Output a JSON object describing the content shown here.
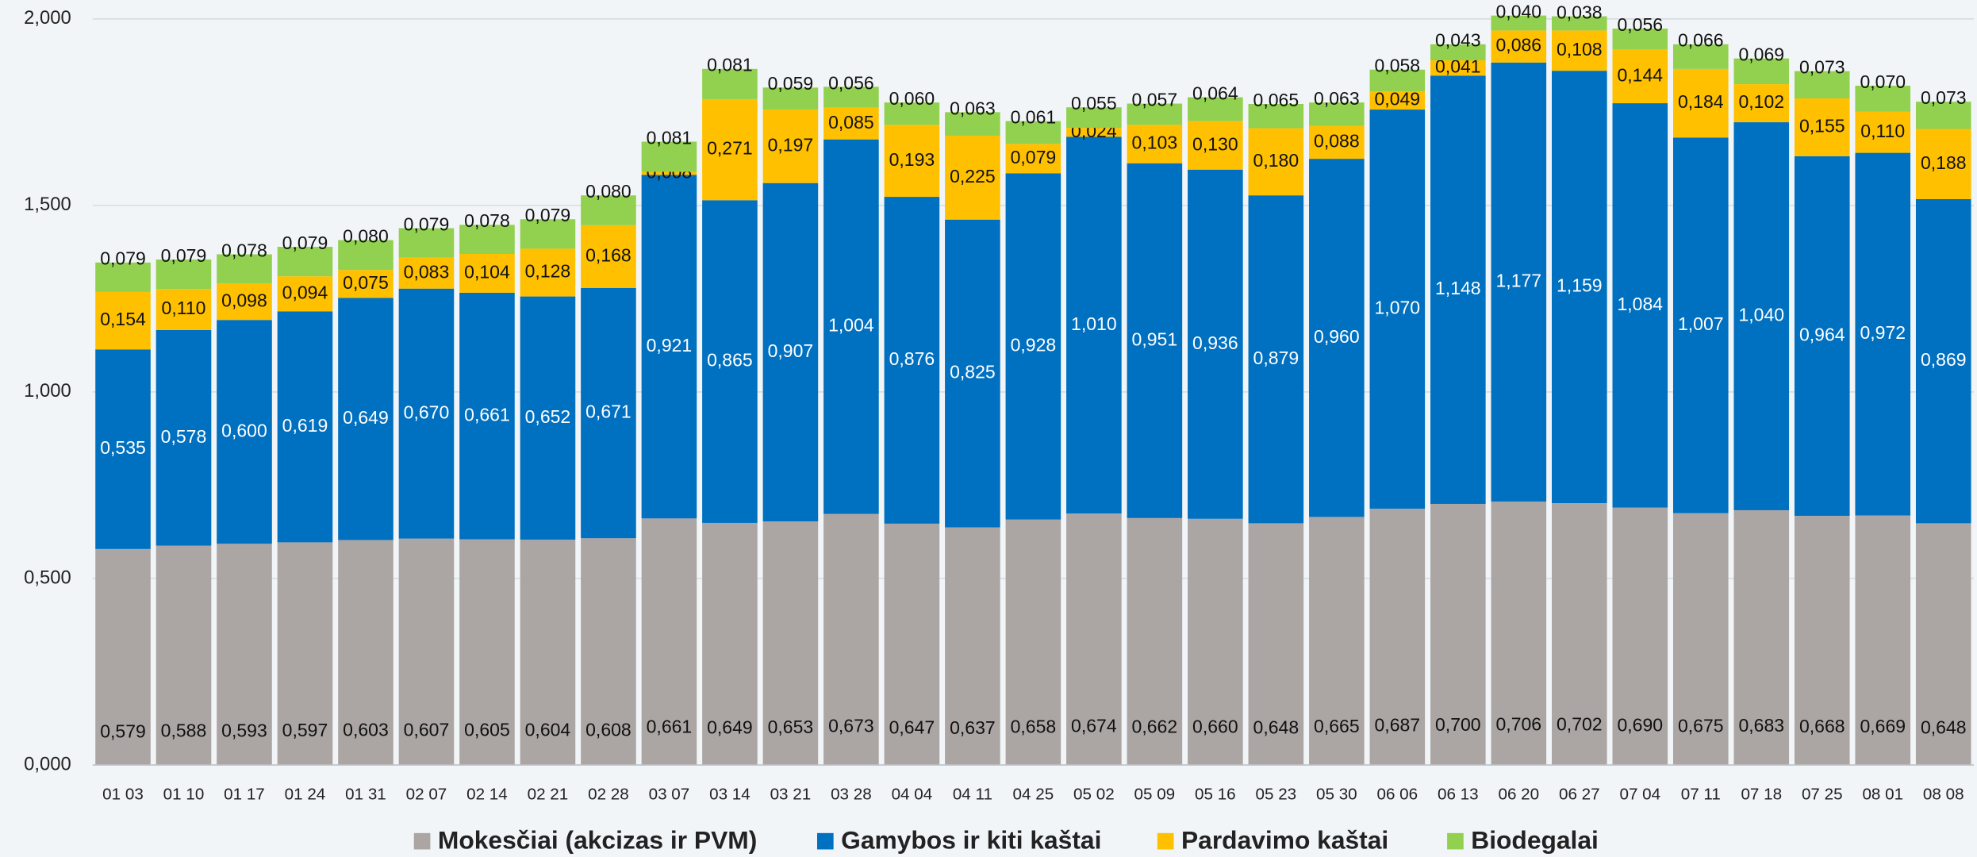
{
  "chart_data": {
    "type": "stacked_bar",
    "categories": [
      "01 03",
      "01 10",
      "01 17",
      "01 24",
      "01 31",
      "02 07",
      "02 14",
      "02 21",
      "02 28",
      "03 07",
      "03 14",
      "03 21",
      "03 28",
      "04 04",
      "04 11",
      "04 25",
      "05 02",
      "05 09",
      "05 16",
      "05 23",
      "05 30",
      "06 06",
      "06 13",
      "06 20",
      "06 27",
      "07 04",
      "07 11",
      "07 18",
      "07 25",
      "08 01",
      "08 08"
    ],
    "ylim": [
      0,
      2
    ],
    "yticks": [
      {
        "value": 0,
        "label": "0,000"
      },
      {
        "value": 0.5,
        "label": "0,500"
      },
      {
        "value": 1,
        "label": "1,000"
      },
      {
        "value": 1.5,
        "label": "1,500"
      },
      {
        "value": 2,
        "label": "2,000"
      }
    ],
    "grid": true,
    "legend": "bottom",
    "series": [
      {
        "name": "Mokesčiai (akcizas ir PVM)",
        "color": "#aba6a4",
        "label_color": "#111111",
        "values": [
          0.579,
          0.588,
          0.593,
          0.597,
          0.603,
          0.607,
          0.605,
          0.604,
          0.608,
          0.661,
          0.649,
          0.653,
          0.673,
          0.647,
          0.637,
          0.658,
          0.674,
          0.662,
          0.66,
          0.648,
          0.665,
          0.687,
          0.7,
          0.706,
          0.702,
          0.69,
          0.675,
          0.683,
          0.668,
          0.669,
          0.648
        ],
        "value_labels": [
          "0,579",
          "0,588",
          "0,593",
          "0,597",
          "0,603",
          "0,607",
          "0,605",
          "0,604",
          "0,608",
          "0,661",
          "0,649",
          "0,653",
          "0,673",
          "0,647",
          "0,637",
          "0,658",
          "0,674",
          "0,662",
          "0,660",
          "0,648",
          "0,665",
          "0,687",
          "0,700",
          "0,706",
          "0,702",
          "0,690",
          "0,675",
          "0,683",
          "0,668",
          "0,669",
          "0,648"
        ]
      },
      {
        "name": "Gamybos ir kiti kaštai",
        "color": "#0070c0",
        "label_color": "#ffffff",
        "values": [
          0.535,
          0.578,
          0.6,
          0.619,
          0.649,
          0.67,
          0.661,
          0.652,
          0.671,
          0.921,
          0.865,
          0.907,
          1.004,
          0.876,
          0.825,
          0.928,
          1.01,
          0.951,
          0.936,
          0.879,
          0.96,
          1.07,
          1.148,
          1.177,
          1.159,
          1.084,
          1.007,
          1.04,
          0.964,
          0.972,
          0.869
        ],
        "value_labels": [
          "0,535",
          "0,578",
          "0,600",
          "0,619",
          "0,649",
          "0,670",
          "0,661",
          "0,652",
          "0,671",
          "0,921",
          "0,865",
          "0,907",
          "1,004",
          "0,876",
          "0,825",
          "0,928",
          "1,010",
          "0,951",
          "0,936",
          "0,879",
          "0,960",
          "1,070",
          "1,148",
          "1,177",
          "1,159",
          "1,084",
          "1,007",
          "1,040",
          "0,964",
          "0,972",
          "0,869"
        ]
      },
      {
        "name": "Pardavimo kaštai",
        "color": "#ffc000",
        "label_color": "#111111",
        "values": [
          0.154,
          0.11,
          0.098,
          0.094,
          0.075,
          0.083,
          0.104,
          0.128,
          0.168,
          0.008,
          0.271,
          0.197,
          0.085,
          0.193,
          0.225,
          0.079,
          0.024,
          0.103,
          0.13,
          0.18,
          0.088,
          0.049,
          0.041,
          0.086,
          0.108,
          0.144,
          0.184,
          0.102,
          0.155,
          0.11,
          0.188
        ],
        "value_labels": [
          "0,154",
          "0,110",
          "0,098",
          "0,094",
          "0,075",
          "0,083",
          "0,104",
          "0,128",
          "0,168",
          "0,008",
          "0,271",
          "0,197",
          "0,085",
          "0,193",
          "0,225",
          "0,079",
          "0,024",
          "0,103",
          "0,130",
          "0,180",
          "0,088",
          "0,049",
          "0,041",
          "0,086",
          "0,108",
          "0,144",
          "0,184",
          "0,102",
          "0,155",
          "0,110",
          "0,188"
        ]
      },
      {
        "name": "Biodegalai",
        "color": "#92d050",
        "label_color": "#111111",
        "values": [
          0.079,
          0.079,
          0.078,
          0.079,
          0.08,
          0.079,
          0.078,
          0.079,
          0.08,
          0.081,
          0.081,
          0.059,
          0.056,
          0.06,
          0.063,
          0.061,
          0.055,
          0.057,
          0.064,
          0.065,
          0.063,
          0.058,
          0.043,
          0.04,
          0.038,
          0.056,
          0.066,
          0.069,
          0.073,
          0.07,
          0.073
        ],
        "value_labels": [
          "0,079",
          "0,079",
          "0,078",
          "0,079",
          "0,080",
          "0,079",
          "0,078",
          "0,079",
          "0,080",
          "0,081",
          "0,081",
          "0,059",
          "0,056",
          "0,060",
          "0,063",
          "0,061",
          "0,055",
          "0,057",
          "0,064",
          "0,065",
          "0,063",
          "0,058",
          "0,043",
          "0,040",
          "0,038",
          "0,056",
          "0,066",
          "0,069",
          "0,073",
          "0,070",
          "0,073"
        ]
      }
    ]
  }
}
